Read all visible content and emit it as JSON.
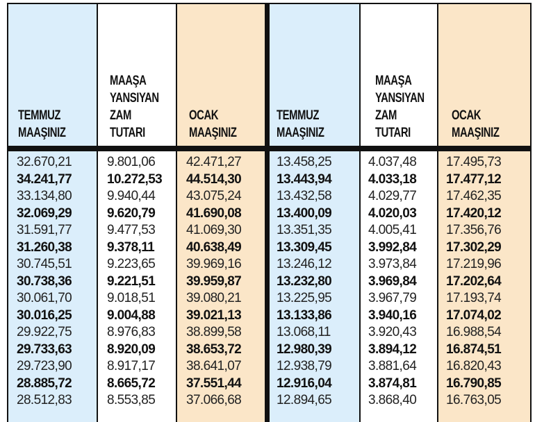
{
  "headers": [
    "TEMMUZ\nMAAŞINIZ",
    "MAAŞA\nYANSIYAN\nZAM\nTUTARI",
    "OCAK\nMAAŞINIZ",
    "TEMMUZ\nMAAŞINIZ",
    "MAAŞA\nYANSIYAN\nZAM\nTUTARI",
    "OCAK\nMAAŞINIZ"
  ],
  "rows": [
    [
      "32.670,21",
      "9.801,06",
      "42.471,27",
      "13.458,25",
      "4.037,48",
      "17.495,73"
    ],
    [
      "34.241,77",
      "10.272,53",
      "44.514,30",
      "13.443,94",
      "4.033,18",
      "17.477,12"
    ],
    [
      "33.134,80",
      "9.940,44",
      "43.075,24",
      "13.432,58",
      "4.029,77",
      "17.462,35"
    ],
    [
      "32.069,29",
      "9.620,79",
      "41.690,08",
      "13.400,09",
      "4.020,03",
      "17.420,12"
    ],
    [
      "31.591,77",
      "9.477,53",
      "41.069,30",
      "13.351,35",
      "4.005,41",
      "17.356,76"
    ],
    [
      "31.260,38",
      "9.378,11",
      "40.638,49",
      "13.309,45",
      "3.992,84",
      "17.302,29"
    ],
    [
      "30.745,51",
      "9.223,65",
      "39.969,16",
      "13.246,12",
      "3.973,84",
      "17.219,96"
    ],
    [
      "30.738,36",
      "9.221,51",
      "39.959,87",
      "13.232,80",
      "3.969,84",
      "17.202,64"
    ],
    [
      "30.061,70",
      "9.018,51",
      "39.080,21",
      "13.225,95",
      "3.967,79",
      "17.193,74"
    ],
    [
      "30.016,25",
      "9.004,88",
      "39.021,13",
      "13.133,86",
      "3.940,16",
      "17.074,02"
    ],
    [
      "29.922,75",
      "8.976,83",
      "38.899,58",
      "13.068,11",
      "3.920,43",
      "16.988,54"
    ],
    [
      "29.733,63",
      "8.920,09",
      "38.653,72",
      "12.980,39",
      "3.894,12",
      "16.874,51"
    ],
    [
      "29.723,90",
      "8.917,17",
      "38.641,07",
      "12.938,79",
      "3.881,64",
      "16.820,43"
    ],
    [
      "28.885,72",
      "8.665,72",
      "37.551,44",
      "12.916,04",
      "3.874,81",
      "16.790,85"
    ],
    [
      "28.512,83",
      "8.553,85",
      "37.066,68",
      "12.894,65",
      "3.868,40",
      "16.763,05"
    ]
  ],
  "bold_rows": [
    1,
    3,
    5,
    7,
    9,
    11,
    13
  ]
}
